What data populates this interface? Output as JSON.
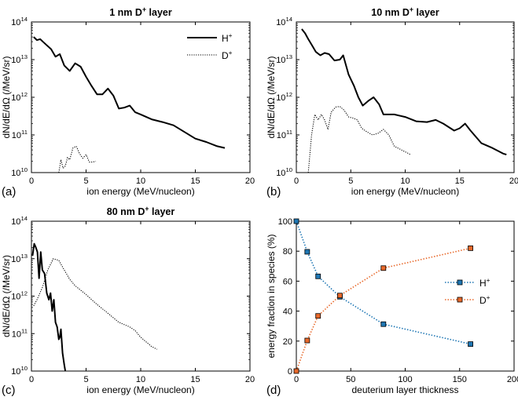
{
  "chart_data": [
    {
      "panel": "(a)",
      "type": "line",
      "title_main": "1 nm D",
      "title_sup": "+",
      "title_rest": " layer",
      "xlabel": "ion energy (MeV/nucleon)",
      "ylabel": "dN/dE/dΩ (/MeV/sr)",
      "xlim": [
        0,
        20
      ],
      "ylim": [
        10000000000.0,
        100000000000000.0
      ],
      "yscale": "log",
      "xticks": [
        "0",
        "5",
        "10",
        "15",
        "20"
      ],
      "yticks": [
        {
          "base": "10",
          "exp": "10"
        },
        {
          "base": "10",
          "exp": "11"
        },
        {
          "base": "10",
          "exp": "12"
        },
        {
          "base": "10",
          "exp": "13"
        },
        {
          "base": "10",
          "exp": "14"
        }
      ],
      "legend": {
        "position": "top-right",
        "entries": [
          {
            "base": "H",
            "sup": "+"
          },
          {
            "base": "D",
            "sup": "+"
          }
        ]
      },
      "series": [
        {
          "name": "H+",
          "style": "solid",
          "x": [
            0.2,
            0.5,
            0.8,
            1.1,
            1.4,
            1.8,
            2.2,
            2.6,
            3.0,
            3.5,
            4.0,
            4.5,
            5.0,
            5.5,
            6.0,
            6.5,
            7.0,
            7.5,
            8.0,
            8.5,
            9.0,
            9.5,
            10.0,
            11.0,
            12.0,
            13.0,
            14.0,
            15.0,
            16.0,
            17.0,
            17.7
          ],
          "y": [
            40000000000000.0,
            33000000000000.0,
            35000000000000.0,
            29000000000000.0,
            24000000000000.0,
            19000000000000.0,
            12000000000000.0,
            14000000000000.0,
            7000000000000.0,
            5000000000000.0,
            8000000000000.0,
            6500000000000.0,
            3500000000000.0,
            2000000000000.0,
            1200000000000.0,
            1200000000000.0,
            1700000000000.0,
            1100000000000.0,
            500000000000.0,
            530000000000.0,
            600000000000.0,
            400000000000.0,
            350000000000.0,
            260000000000.0,
            220000000000.0,
            180000000000.0,
            120000000000.0,
            80000000000.0,
            65000000000.0,
            50000000000.0,
            45000000000.0
          ]
        },
        {
          "name": "D+",
          "style": "dotted",
          "x": [
            2.5,
            2.7,
            2.9,
            3.1,
            3.3,
            3.5,
            3.8,
            4.1,
            4.4,
            4.7,
            5.0,
            5.3,
            5.6,
            5.9
          ],
          "y": [
            10000000000.0,
            22000000000.0,
            13000000000.0,
            15000000000.0,
            25000000000.0,
            22000000000.0,
            45000000000.0,
            50000000000.0,
            32000000000.0,
            24000000000.0,
            30000000000.0,
            19000000000.0,
            19000000000.0,
            20000000000.0
          ]
        }
      ]
    },
    {
      "panel": "(b)",
      "type": "line",
      "title_main": "10 nm D",
      "title_sup": "+",
      "title_rest": " layer",
      "xlabel": "ion energy (MeV/nucleon)",
      "ylabel": "dN/dE/dΩ (/MeV/sr)",
      "xlim": [
        0,
        20
      ],
      "ylim": [
        10000000000.0,
        100000000000000.0
      ],
      "yscale": "log",
      "xticks": [
        "0",
        "5",
        "10",
        "15",
        "20"
      ],
      "yticks": [
        {
          "base": "10",
          "exp": "10"
        },
        {
          "base": "10",
          "exp": "11"
        },
        {
          "base": "10",
          "exp": "12"
        },
        {
          "base": "10",
          "exp": "13"
        },
        {
          "base": "10",
          "exp": "14"
        }
      ],
      "series": [
        {
          "name": "H+",
          "style": "solid",
          "x": [
            0.5,
            0.8,
            1.1,
            1.4,
            1.8,
            2.2,
            2.6,
            3.0,
            3.5,
            4.0,
            4.3,
            4.8,
            5.3,
            5.7,
            6.1,
            6.6,
            7.1,
            7.6,
            8.0,
            9.0,
            10.0,
            11.0,
            12.0,
            12.8,
            13.5,
            14.5,
            15.0,
            15.5,
            16.0,
            17.0,
            18.0,
            19.0,
            19.3
          ],
          "y": [
            65000000000000.0,
            50000000000000.0,
            35000000000000.0,
            25000000000000.0,
            16000000000000.0,
            13000000000000.0,
            15000000000000.0,
            14000000000000.0,
            9500000000000.0,
            10000000000000.0,
            13000000000000.0,
            4000000000000.0,
            2000000000000.0,
            1000000000000.0,
            600000000000.0,
            800000000000.0,
            1000000000000.0,
            650000000000.0,
            350000000000.0,
            350000000000.0,
            300000000000.0,
            230000000000.0,
            220000000000.0,
            250000000000.0,
            200000000000.0,
            130000000000.0,
            150000000000.0,
            200000000000.0,
            130000000000.0,
            60000000000.0,
            45000000000.0,
            32000000000.0,
            30000000000.0
          ]
        },
        {
          "name": "D+",
          "style": "dotted",
          "x": [
            1.1,
            1.4,
            1.7,
            2.0,
            2.3,
            2.6,
            2.9,
            3.2,
            3.6,
            4.0,
            4.4,
            4.8,
            5.2,
            5.6,
            6.0,
            6.5,
            7.0,
            7.5,
            8.0,
            8.5,
            9.0,
            10.5
          ],
          "y": [
            10000000000.0,
            100000000000.0,
            350000000000.0,
            250000000000.0,
            350000000000.0,
            250000000000.0,
            140000000000.0,
            400000000000.0,
            550000000000.0,
            570000000000.0,
            450000000000.0,
            300000000000.0,
            280000000000.0,
            250000000000.0,
            150000000000.0,
            120000000000.0,
            100000000000.0,
            110000000000.0,
            140000000000.0,
            100000000000.0,
            50000000000.0,
            30000000000.0
          ]
        }
      ]
    },
    {
      "panel": "(c)",
      "type": "line",
      "title_main": "80 nm D",
      "title_sup": "+",
      "title_rest": " layer",
      "xlabel": "ion energy (MeV/nucleon)",
      "ylabel": "dN/dE/dΩ (/MeV/sr)",
      "xlim": [
        0,
        20
      ],
      "ylim": [
        10000000000.0,
        100000000000000.0
      ],
      "yscale": "log",
      "xticks": [
        "0",
        "5",
        "10",
        "15",
        "20"
      ],
      "yticks": [
        {
          "base": "10",
          "exp": "10"
        },
        {
          "base": "10",
          "exp": "11"
        },
        {
          "base": "10",
          "exp": "12"
        },
        {
          "base": "10",
          "exp": "13"
        },
        {
          "base": "10",
          "exp": "14"
        }
      ],
      "series": [
        {
          "name": "H+",
          "style": "solid",
          "x": [
            0.1,
            0.25,
            0.4,
            0.55,
            0.7,
            0.85,
            1.0,
            1.2,
            1.4,
            1.6,
            1.75,
            1.9,
            2.05,
            2.2,
            2.35,
            2.5,
            2.6,
            2.7,
            2.85,
            3.0,
            3.1
          ],
          "y": [
            12000000000000.0,
            25000000000000.0,
            20000000000000.0,
            15000000000000.0,
            3000000000000.0,
            15000000000000.0,
            5000000000000.0,
            4000000000000.0,
            1200000000000.0,
            800000000000.0,
            1200000000000.0,
            400000000000.0,
            800000000000.0,
            200000000000.0,
            150000000000.0,
            70000000000.0,
            80000000000.0,
            130000000000.0,
            30000000000.0,
            15000000000.0,
            10000000000.0
          ]
        },
        {
          "name": "D+",
          "style": "dotted",
          "x": [
            0.2,
            0.5,
            1.0,
            1.5,
            2.0,
            2.5,
            3.0,
            3.5,
            4.0,
            5.0,
            6.0,
            7.0,
            8.0,
            9.0,
            9.5,
            10.0,
            11.0,
            11.5
          ],
          "y": [
            550000000000.0,
            800000000000.0,
            1700000000000.0,
            5000000000000.0,
            10000000000000.0,
            9000000000000.0,
            5000000000000.0,
            2800000000000.0,
            1900000000000.0,
            1100000000000.0,
            600000000000.0,
            350000000000.0,
            200000000000.0,
            150000000000.0,
            120000000000.0,
            80000000000.0,
            45000000000.0,
            38000000000.0
          ]
        }
      ]
    },
    {
      "panel": "(d)",
      "type": "line",
      "xlabel": "deuterium layer thickness",
      "ylabel": "energy fraction in species (%)",
      "xlim": [
        0,
        200
      ],
      "ylim": [
        0,
        100
      ],
      "yscale": "linear",
      "xticks": [
        "0",
        "50",
        "100",
        "150",
        "200"
      ],
      "yticks": [
        "0",
        "20",
        "40",
        "60",
        "80",
        "100"
      ],
      "legend": {
        "position": "right",
        "entries": [
          {
            "base": "H",
            "sup": "+"
          },
          {
            "base": "D",
            "sup": "+"
          }
        ]
      },
      "series": [
        {
          "name": "H+",
          "style": "dotted-marker",
          "color": "#1f77b4",
          "x": [
            0,
            10,
            20,
            40,
            80,
            160
          ],
          "y": [
            100,
            79.6,
            63.2,
            49.6,
            31.3,
            18
          ]
        },
        {
          "name": "D+",
          "style": "dotted-marker",
          "color": "#e8692b",
          "x": [
            0,
            10,
            20,
            40,
            80,
            160
          ],
          "y": [
            0,
            20.4,
            36.8,
            50.4,
            68.7,
            82
          ]
        }
      ]
    }
  ]
}
